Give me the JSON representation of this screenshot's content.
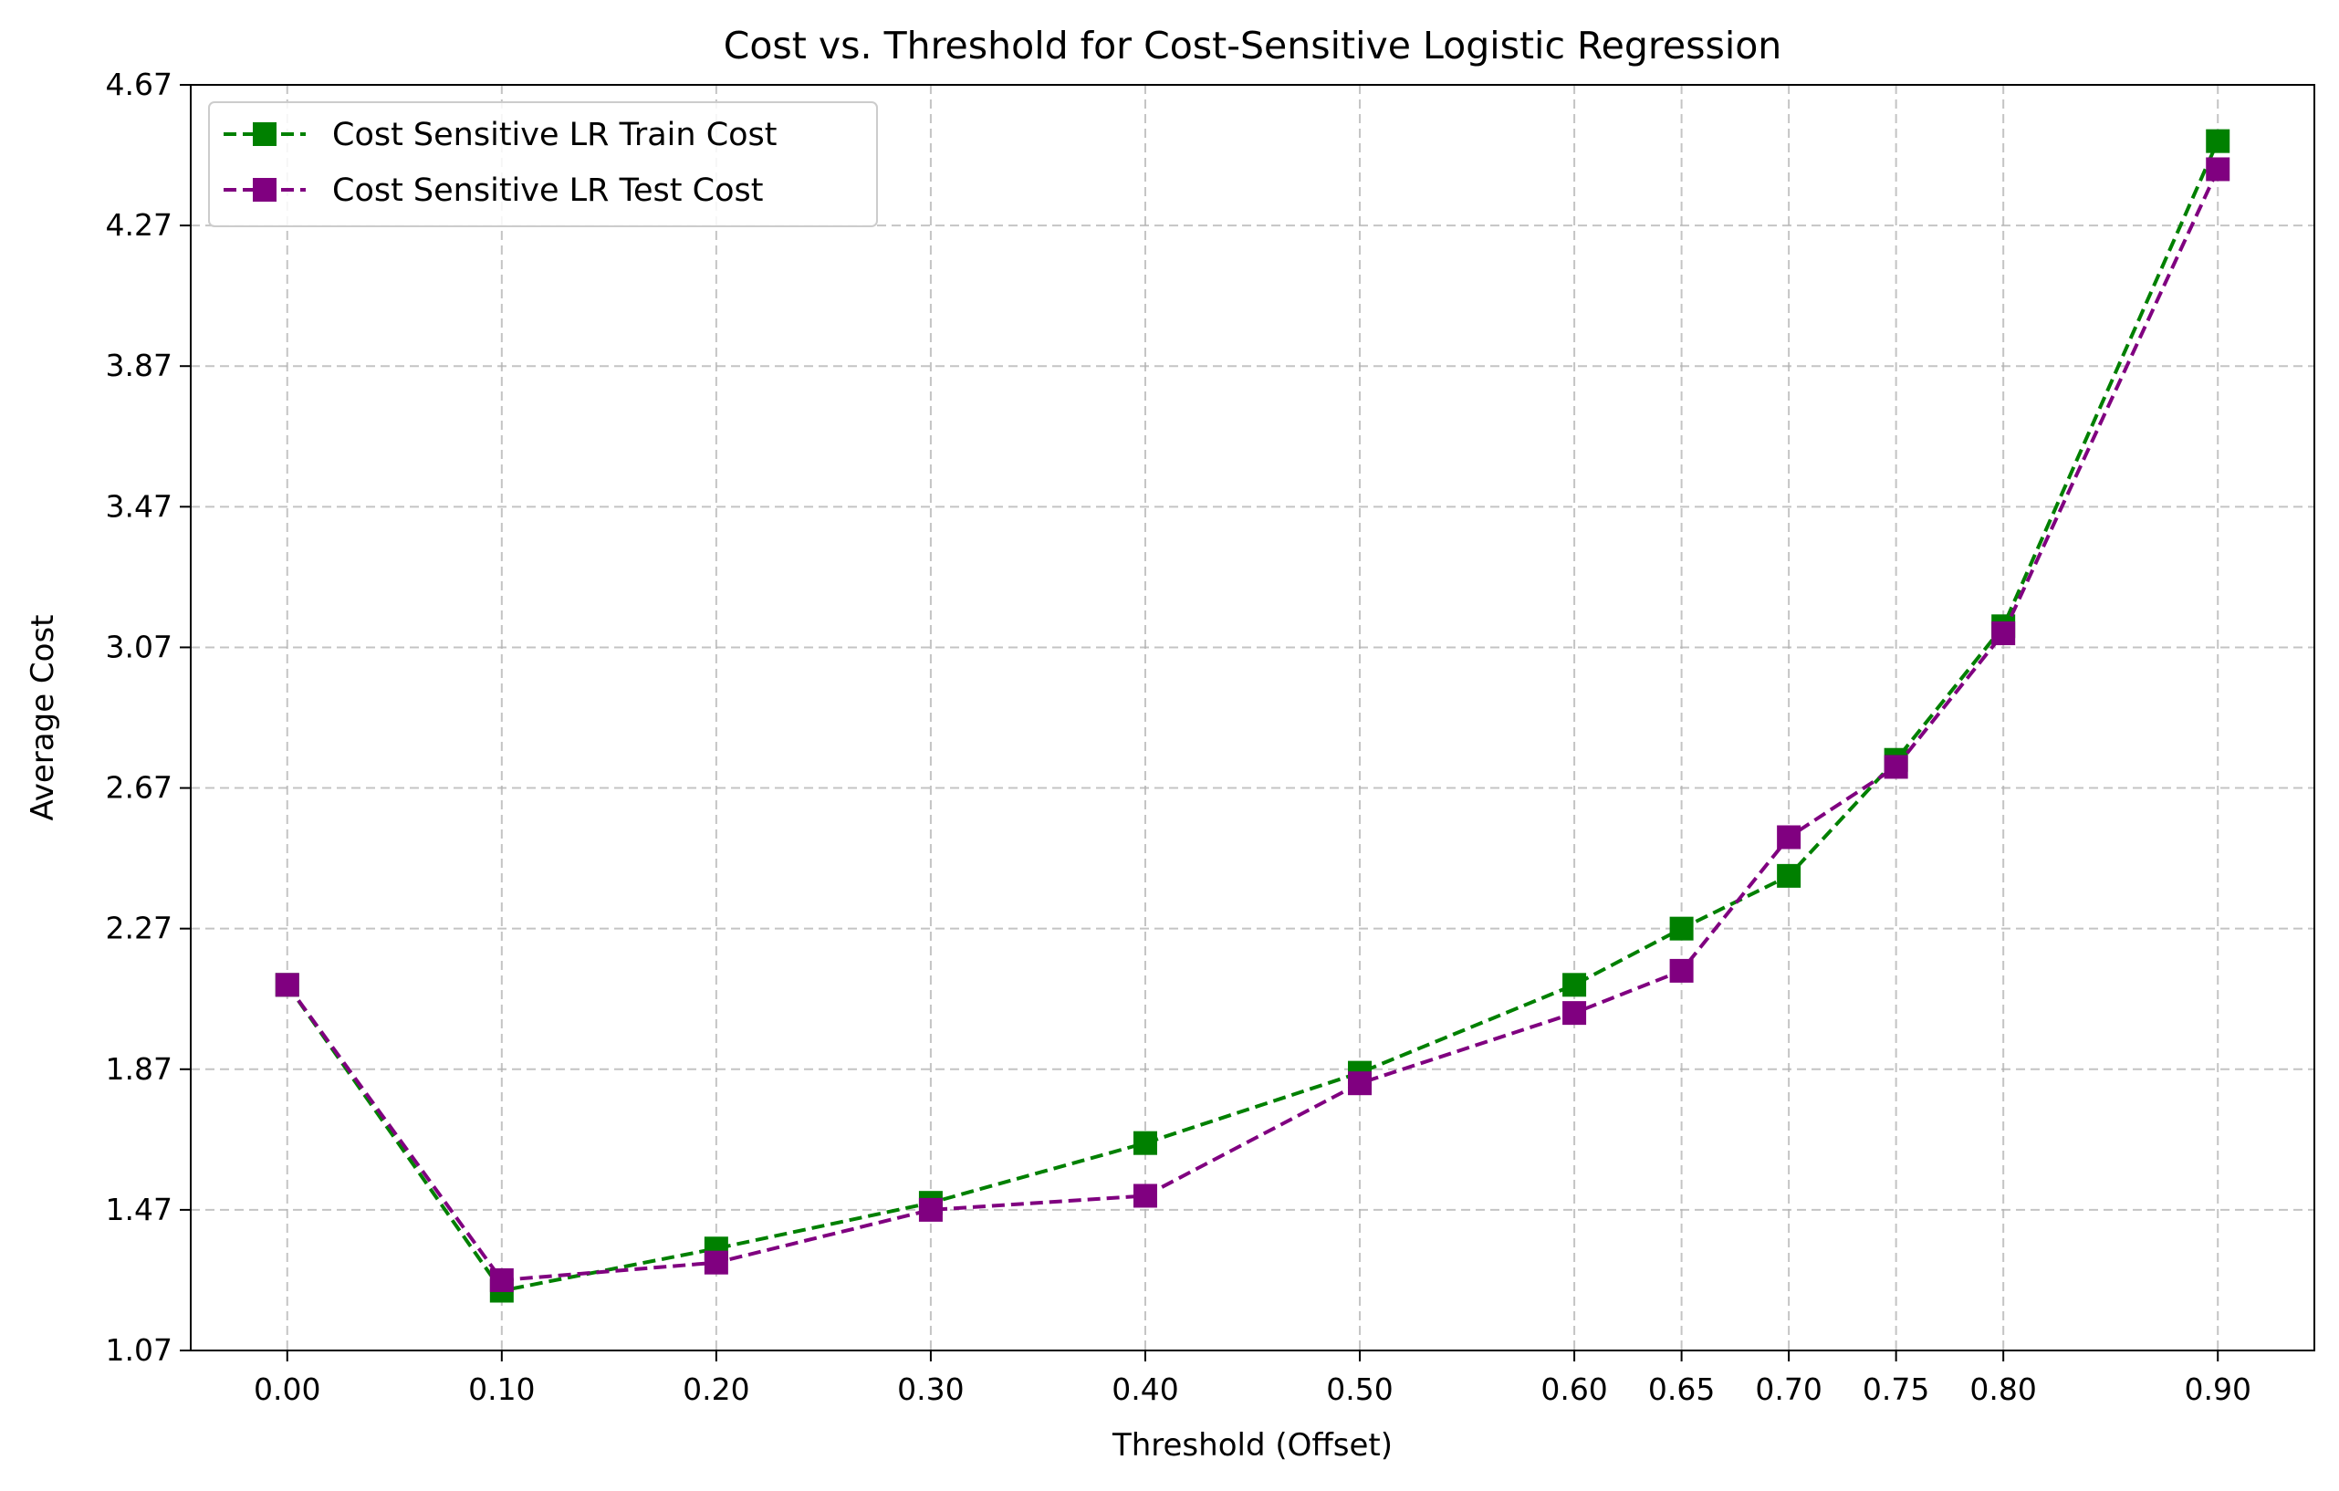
{
  "chart_data": {
    "type": "line",
    "title": "Cost vs. Threshold for Cost-Sensitive Logistic Regression",
    "xlabel": "Threshold (Offset)",
    "ylabel": "Average Cost",
    "x": [
      0.0,
      0.1,
      0.2,
      0.3,
      0.4,
      0.5,
      0.6,
      0.65,
      0.7,
      0.75,
      0.8,
      0.9
    ],
    "x_tick_labels": [
      "0.00",
      "0.10",
      "0.20",
      "0.30",
      "0.40",
      "0.50",
      "0.60",
      "0.65",
      "0.70",
      "0.75",
      "0.80",
      "0.90"
    ],
    "y_ticks": [
      1.07,
      1.47,
      1.87,
      2.27,
      2.67,
      3.07,
      3.47,
      3.87,
      4.27,
      4.67
    ],
    "y_tick_labels": [
      "1.07",
      "1.47",
      "1.87",
      "2.27",
      "2.67",
      "3.07",
      "3.47",
      "3.87",
      "4.27",
      "4.67"
    ],
    "xlim": [
      -0.045,
      0.945
    ],
    "ylim": [
      1.07,
      4.67
    ],
    "grid": true,
    "legend_position": "top-left",
    "series": [
      {
        "name": "Cost Sensitive LR Train Cost",
        "color": "#008000",
        "marker": "square",
        "linestyle": "dashed",
        "values": [
          2.11,
          1.24,
          1.36,
          1.49,
          1.66,
          1.86,
          2.11,
          2.27,
          2.42,
          2.75,
          3.13,
          4.51
        ]
      },
      {
        "name": "Cost Sensitive LR Test Cost",
        "color": "#800080",
        "marker": "square",
        "linestyle": "dashed",
        "values": [
          2.11,
          1.27,
          1.32,
          1.47,
          1.51,
          1.83,
          2.03,
          2.15,
          2.53,
          2.73,
          3.11,
          4.43
        ]
      }
    ]
  }
}
